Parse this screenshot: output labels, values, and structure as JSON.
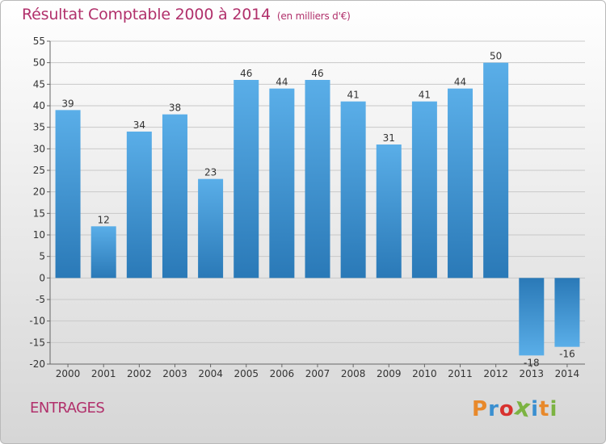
{
  "header": {
    "title": "Résultat Comptable 2000 à 2014",
    "subtitle": "(en milliers d'€)"
  },
  "footer": {
    "commune": "ENTRAGES",
    "brand": "Proxiti",
    "brand_colors": [
      "#e8892b",
      "#3a8fd0",
      "#d8322f",
      "#7cb342",
      "#3a8fd0",
      "#e8892b",
      "#7cb342"
    ]
  },
  "colors": {
    "title": "#b1306b",
    "bar_light": "#5aaee8",
    "bar_dark": "#2a79b7",
    "grid": "#c8c8c8"
  },
  "chart_data": {
    "type": "bar",
    "title": "Résultat Comptable 2000 à 2014",
    "subtitle": "(en milliers d'€)",
    "categories": [
      "2000",
      "2001",
      "2002",
      "2003",
      "2004",
      "2005",
      "2006",
      "2007",
      "2008",
      "2009",
      "2010",
      "2011",
      "2012",
      "2013",
      "2014"
    ],
    "values": [
      39,
      12,
      34,
      38,
      23,
      46,
      44,
      46,
      41,
      31,
      41,
      44,
      50,
      -18,
      -16
    ],
    "ylim": [
      -20,
      55
    ],
    "yticks": [
      -20,
      -15,
      -10,
      -5,
      0,
      5,
      10,
      15,
      20,
      25,
      30,
      35,
      40,
      45,
      50,
      55
    ],
    "grid": true,
    "xlabel": "",
    "ylabel": ""
  }
}
